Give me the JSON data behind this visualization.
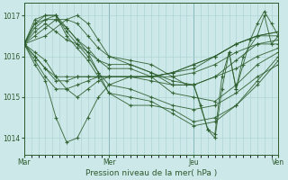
{
  "title": "",
  "xlabel": "Pression niveau de la mer( hPa )",
  "ylabel": "",
  "bg_color": "#cce8e8",
  "line_color": "#2d5e2d",
  "marker_color": "#2d5e2d",
  "grid_color": "#aad0d0",
  "ylim": [
    1013.6,
    1017.3
  ],
  "yticks": [
    1014,
    1015,
    1016,
    1017
  ],
  "xlim": [
    0,
    72
  ],
  "days": [
    "Mar",
    "Mer",
    "Jeu",
    "Ven"
  ],
  "day_positions": [
    0,
    24,
    48,
    72
  ],
  "minor_xticks_step": 2,
  "series": [
    [
      0,
      1016.3,
      3,
      1016.1,
      6,
      1015.9,
      9,
      1015.5,
      12,
      1015.2,
      15,
      1015.0,
      18,
      1015.2,
      21,
      1015.4,
      24,
      1015.5,
      30,
      1015.5,
      36,
      1015.5,
      42,
      1015.6,
      48,
      1015.8,
      54,
      1016.0,
      60,
      1016.3,
      66,
      1016.5,
      72,
      1016.5
    ],
    [
      0,
      1016.3,
      3,
      1015.8,
      6,
      1015.4,
      9,
      1014.5,
      12,
      1013.9,
      15,
      1014.0,
      18,
      1014.5,
      21,
      1015.0,
      24,
      1015.3,
      30,
      1015.5,
      36,
      1015.4,
      42,
      1015.3,
      48,
      1015.3,
      54,
      1015.5,
      60,
      1015.9,
      66,
      1016.3,
      72,
      1016.3
    ],
    [
      0,
      1016.3,
      3,
      1016.0,
      6,
      1015.7,
      9,
      1015.4,
      12,
      1015.4,
      15,
      1015.5,
      18,
      1015.5,
      21,
      1015.5,
      24,
      1015.5,
      30,
      1015.5,
      36,
      1015.5,
      42,
      1015.6,
      48,
      1015.8,
      54,
      1016.0,
      60,
      1016.3,
      66,
      1016.5,
      72,
      1016.6
    ],
    [
      0,
      1016.3,
      3,
      1015.9,
      6,
      1015.5,
      9,
      1015.2,
      12,
      1015.2,
      15,
      1015.3,
      18,
      1015.4,
      21,
      1015.5,
      24,
      1015.5,
      30,
      1015.5,
      36,
      1015.5,
      42,
      1015.5,
      48,
      1015.6,
      54,
      1015.8,
      60,
      1016.1,
      66,
      1016.3,
      72,
      1016.4
    ],
    [
      0,
      1016.3,
      3,
      1016.0,
      6,
      1015.7,
      9,
      1015.5,
      12,
      1015.5,
      15,
      1015.5,
      18,
      1015.5,
      21,
      1015.5,
      24,
      1015.5,
      30,
      1015.5,
      36,
      1015.5,
      42,
      1015.6,
      48,
      1015.7,
      54,
      1016.0,
      60,
      1016.3,
      66,
      1016.5,
      72,
      1016.6
    ],
    [
      0,
      1016.3,
      3,
      1016.6,
      6,
      1016.8,
      9,
      1016.6,
      12,
      1016.4,
      15,
      1016.3,
      18,
      1016.1,
      21,
      1015.9,
      24,
      1015.8,
      30,
      1015.8,
      36,
      1015.6,
      42,
      1015.4,
      48,
      1015.3,
      54,
      1015.5,
      60,
      1015.7,
      66,
      1016.0,
      72,
      1016.2
    ],
    [
      0,
      1016.3,
      3,
      1016.8,
      6,
      1016.9,
      9,
      1017.0,
      12,
      1016.7,
      15,
      1016.4,
      18,
      1016.2,
      21,
      1015.9,
      24,
      1015.7,
      30,
      1015.7,
      36,
      1015.5,
      42,
      1015.1,
      48,
      1015.0,
      54,
      1014.9,
      60,
      1015.3,
      66,
      1015.8,
      72,
      1016.1
    ],
    [
      0,
      1016.3,
      3,
      1016.7,
      6,
      1016.9,
      9,
      1016.9,
      12,
      1016.7,
      15,
      1016.4,
      18,
      1016.1,
      21,
      1015.6,
      24,
      1015.3,
      30,
      1015.2,
      36,
      1015.0,
      42,
      1014.8,
      48,
      1014.7,
      54,
      1014.8,
      60,
      1015.1,
      66,
      1015.5,
      72,
      1015.8
    ],
    [
      0,
      1016.3,
      3,
      1016.8,
      6,
      1017.0,
      9,
      1017.0,
      12,
      1016.6,
      15,
      1016.3,
      18,
      1016.0,
      21,
      1015.6,
      24,
      1015.1,
      30,
      1014.8,
      36,
      1014.8,
      42,
      1014.7,
      48,
      1014.4,
      54,
      1014.5,
      60,
      1014.8,
      66,
      1015.3,
      72,
      1015.9
    ],
    [
      0,
      1016.3,
      3,
      1016.9,
      6,
      1017.0,
      9,
      1017.0,
      12,
      1016.5,
      15,
      1016.2,
      18,
      1015.9,
      21,
      1015.5,
      24,
      1015.1,
      30,
      1015.0,
      36,
      1014.9,
      42,
      1014.6,
      48,
      1014.3,
      54,
      1014.4,
      60,
      1014.8,
      66,
      1015.4,
      72,
      1016.0
    ],
    [
      0,
      1016.3,
      3,
      1016.5,
      6,
      1016.7,
      9,
      1016.9,
      12,
      1016.9,
      15,
      1016.8,
      18,
      1016.5,
      21,
      1016.2,
      24,
      1016.0,
      30,
      1015.8,
      36,
      1015.6,
      42,
      1015.3,
      48,
      1015.3,
      52,
      1014.2,
      54,
      1014.1,
      56,
      1015.5,
      58,
      1016.1,
      60,
      1015.2,
      62,
      1016.0,
      66,
      1016.5,
      68,
      1017.0,
      70,
      1016.3,
      72,
      1016.5
    ],
    [
      0,
      1016.3,
      6,
      1016.5,
      12,
      1016.9,
      15,
      1017.0,
      18,
      1016.8,
      21,
      1016.4,
      24,
      1016.0,
      30,
      1015.9,
      36,
      1015.8,
      42,
      1015.5,
      46,
      1015.3,
      48,
      1015.3,
      50,
      1014.8,
      52,
      1014.2,
      54,
      1014.0,
      56,
      1015.2,
      58,
      1016.1,
      60,
      1015.2,
      62,
      1015.8,
      64,
      1016.4,
      66,
      1016.8,
      68,
      1017.1,
      70,
      1016.8,
      72,
      1016.5
    ]
  ]
}
